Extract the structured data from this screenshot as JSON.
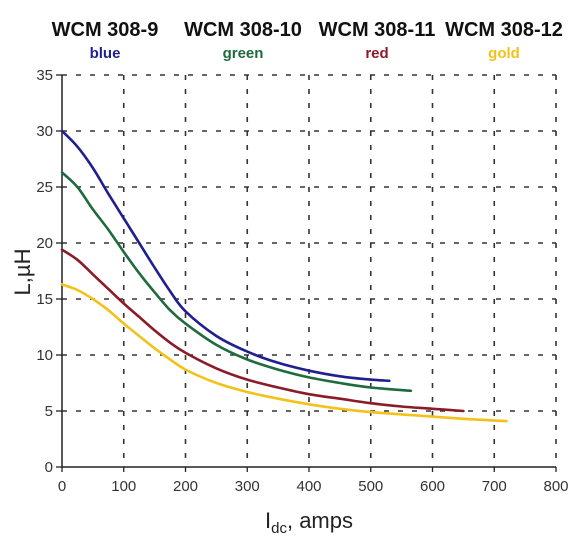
{
  "chart_data": {
    "type": "line",
    "xlabel_main": "I",
    "xlabel_sub": "dc",
    "xlabel_rest": ", amps",
    "ylabel": "L,µH",
    "xlim": [
      0,
      800
    ],
    "ylim": [
      0,
      35
    ],
    "xticks": [
      "0",
      "100",
      "200",
      "300",
      "400",
      "500",
      "600",
      "700",
      "800"
    ],
    "yticks": [
      "0",
      "5",
      "10",
      "15",
      "20",
      "25",
      "30",
      "35"
    ],
    "grid": true,
    "legend_placement": "top",
    "series": [
      {
        "name": "WCM 308-9",
        "color_label": "blue",
        "color": "#1f1f8f",
        "x": [
          0,
          25,
          50,
          75,
          100,
          125,
          150,
          175,
          200,
          250,
          300,
          350,
          400,
          450,
          500,
          530
        ],
        "y": [
          30.0,
          28.6,
          26.7,
          24.4,
          22.2,
          20.0,
          17.8,
          15.7,
          13.9,
          11.7,
          10.3,
          9.3,
          8.6,
          8.1,
          7.8,
          7.7
        ]
      },
      {
        "name": "WCM 308-10",
        "color_label": "green",
        "color": "#1e6b3e",
        "x": [
          0,
          25,
          50,
          75,
          100,
          125,
          150,
          175,
          200,
          250,
          300,
          350,
          400,
          450,
          500,
          565
        ],
        "y": [
          26.3,
          25.0,
          23.0,
          21.2,
          19.2,
          17.3,
          15.6,
          14.0,
          12.8,
          10.9,
          9.6,
          8.7,
          8.0,
          7.5,
          7.1,
          6.8
        ]
      },
      {
        "name": "WCM 308-11",
        "color_label": "red",
        "color": "#8c1a2a",
        "x": [
          0,
          25,
          50,
          75,
          100,
          125,
          150,
          175,
          200,
          250,
          300,
          350,
          400,
          450,
          500,
          550,
          600,
          650
        ],
        "y": [
          19.4,
          18.5,
          17.2,
          15.9,
          14.6,
          13.4,
          12.2,
          11.1,
          10.2,
          8.8,
          7.8,
          7.1,
          6.5,
          6.1,
          5.7,
          5.4,
          5.2,
          5.0
        ]
      },
      {
        "name": "WCM 308-12",
        "color_label": "gold",
        "color": "#f2c21b",
        "x": [
          0,
          25,
          50,
          75,
          100,
          125,
          150,
          175,
          200,
          250,
          300,
          350,
          400,
          450,
          500,
          550,
          600,
          650,
          720
        ],
        "y": [
          16.3,
          15.8,
          15.0,
          14.0,
          12.8,
          11.7,
          10.6,
          9.6,
          8.7,
          7.5,
          6.7,
          6.1,
          5.6,
          5.2,
          4.9,
          4.7,
          4.5,
          4.3,
          4.1
        ]
      }
    ]
  }
}
